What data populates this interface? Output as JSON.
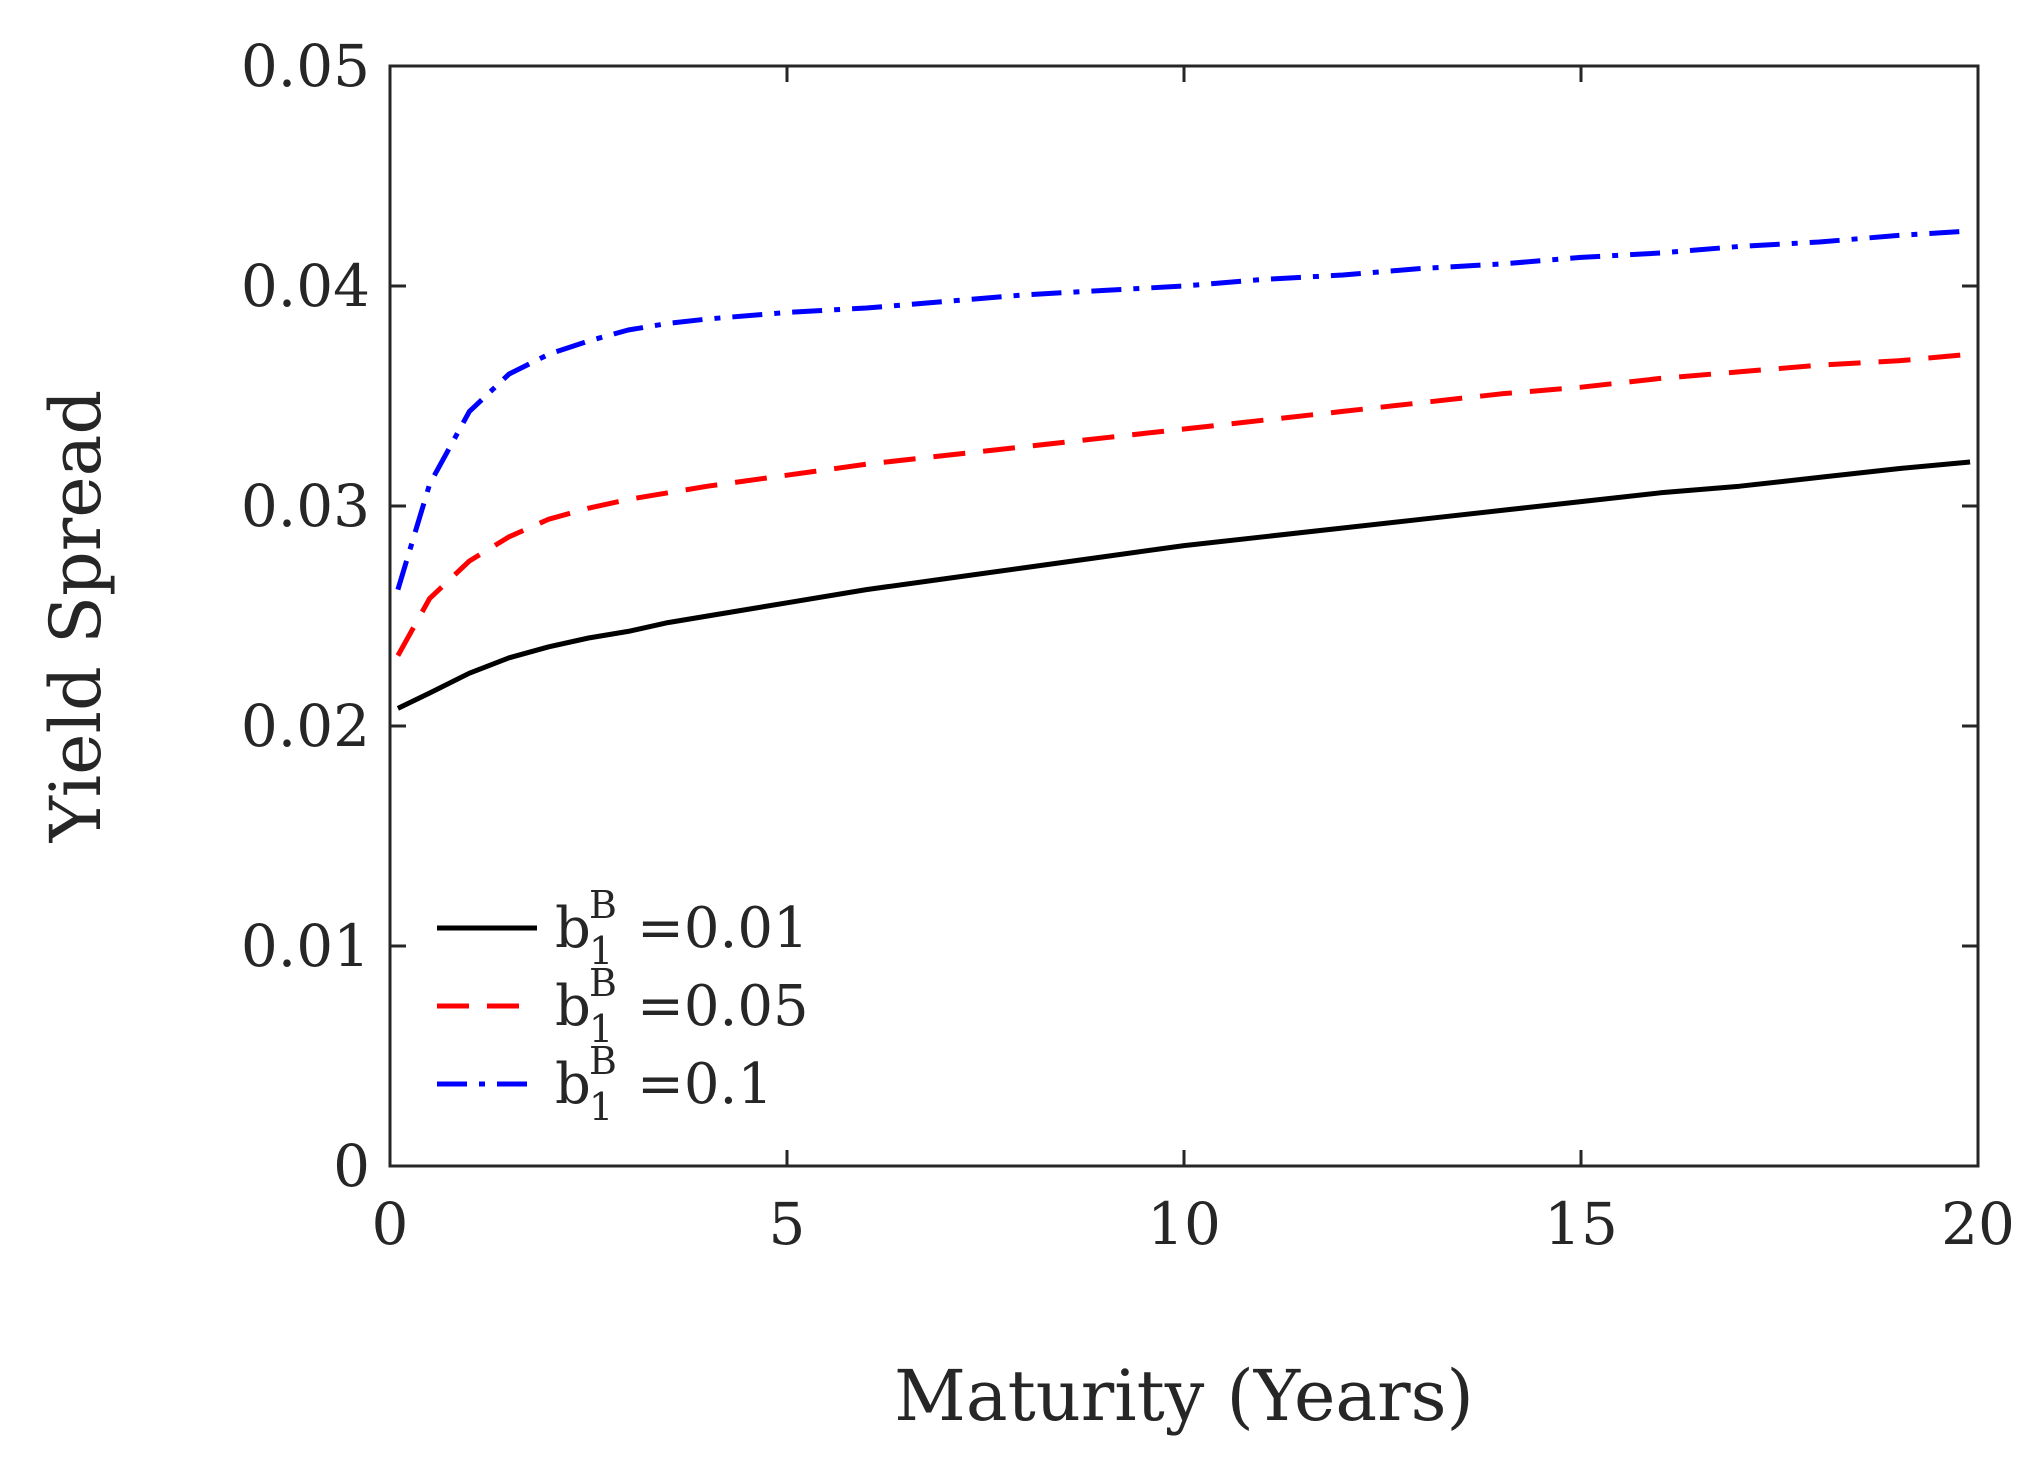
{
  "chart_data": {
    "type": "line",
    "xlabel": "Maturity (Years)",
    "ylabel": "Yield Spread",
    "xlim": [
      0,
      20
    ],
    "ylim": [
      0,
      0.05
    ],
    "xticks": [
      0,
      5,
      10,
      15,
      20
    ],
    "xtick_labels": [
      "0",
      "5",
      "10",
      "15",
      "20"
    ],
    "yticks": [
      0,
      0.01,
      0.02,
      0.03,
      0.04,
      0.05
    ],
    "ytick_labels": [
      "0",
      "0.01",
      "0.02",
      "0.03",
      "0.04",
      "0.05"
    ],
    "grid": false,
    "legend_position": "bottom-left",
    "x": [
      0.1,
      0.5,
      1,
      1.5,
      2,
      2.5,
      3,
      3.5,
      4,
      5,
      6,
      7,
      8,
      9,
      10,
      11,
      12,
      13,
      14,
      15,
      16,
      17,
      18,
      19,
      19.9
    ],
    "series": [
      {
        "name": "b1B=0.01",
        "legend_base": "b",
        "legend_sub": "1",
        "legend_sup": "B",
        "legend_value": "=0.01",
        "color": "#000000",
        "dash": "solid",
        "values": [
          0.0208,
          0.0215,
          0.0224,
          0.0231,
          0.0236,
          0.024,
          0.0243,
          0.0247,
          0.025,
          0.0256,
          0.0262,
          0.0267,
          0.0272,
          0.0277,
          0.0282,
          0.0286,
          0.029,
          0.0294,
          0.0298,
          0.0302,
          0.0306,
          0.0309,
          0.0313,
          0.0317,
          0.032
        ]
      },
      {
        "name": "b1B=0.05",
        "legend_base": "b",
        "legend_sub": "1",
        "legend_sup": "B",
        "legend_value": "=0.05",
        "color": "#ff0000",
        "dash": "dashed",
        "values": [
          0.0232,
          0.0258,
          0.0275,
          0.0286,
          0.0294,
          0.0299,
          0.0303,
          0.0306,
          0.0309,
          0.0314,
          0.0319,
          0.0323,
          0.0327,
          0.0331,
          0.0335,
          0.0339,
          0.0343,
          0.0347,
          0.0351,
          0.0354,
          0.0358,
          0.0361,
          0.0364,
          0.0366,
          0.0369
        ]
      },
      {
        "name": "b1B=0.1",
        "legend_base": "b",
        "legend_sub": "1",
        "legend_sup": "B",
        "legend_value": "=0.1",
        "color": "#0000ff",
        "dash": "dashdot",
        "values": [
          0.0262,
          0.031,
          0.0343,
          0.036,
          0.0369,
          0.0375,
          0.038,
          0.0383,
          0.0385,
          0.0388,
          0.039,
          0.0393,
          0.0396,
          0.0398,
          0.04,
          0.0403,
          0.0405,
          0.0408,
          0.041,
          0.0413,
          0.0415,
          0.0418,
          0.042,
          0.0423,
          0.0425
        ]
      }
    ]
  }
}
